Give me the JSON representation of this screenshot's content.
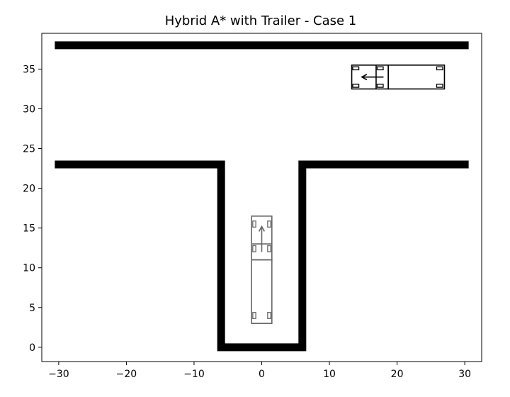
{
  "chart_data": {
    "type": "line",
    "title": "Hybrid A* with Trailer - Case 1",
    "xlabel": "",
    "ylabel": "",
    "xlim": [
      -32.5,
      32.5
    ],
    "ylim": [
      -1.8,
      39.5
    ],
    "grid": false,
    "equal_aspect": true,
    "x_ticks": [
      -30,
      -20,
      -10,
      0,
      10,
      20,
      30
    ],
    "x_tick_labels": [
      "−30",
      "−20",
      "−10",
      "0",
      "10",
      "20",
      "30"
    ],
    "y_ticks": [
      0,
      5,
      10,
      15,
      20,
      25,
      30,
      35
    ],
    "y_tick_labels": [
      "0",
      "5",
      "10",
      "15",
      "20",
      "25",
      "30",
      "35"
    ],
    "obstacles": [
      {
        "points": [
          [
            -30,
            38
          ],
          [
            30,
            38
          ]
        ]
      },
      {
        "points": [
          [
            -30,
            23
          ],
          [
            -6,
            23
          ],
          [
            -6,
            0
          ],
          [
            6,
            0
          ],
          [
            6,
            23
          ],
          [
            30,
            23
          ]
        ]
      }
    ],
    "vehicles": [
      {
        "role": "start",
        "color": "#000000",
        "heading_deg": 180,
        "cab": {
          "x_min": 13.3,
          "x_max": 18.7,
          "y_min": 32.5,
          "y_max": 35.5
        },
        "trailer": {
          "x_min": 18.7,
          "x_max": 27.0,
          "y_min": 32.5,
          "y_max": 35.5
        },
        "hitch_x": 16.9,
        "arrow": {
          "from": [
            18.0,
            34.0
          ],
          "to": [
            14.8,
            34.0
          ]
        }
      },
      {
        "role": "goal",
        "color": "#666666",
        "heading_deg": 90,
        "cab": {
          "x_min": -1.5,
          "x_max": 1.5,
          "y_min": 11.0,
          "y_max": 16.5
        },
        "trailer": {
          "x_min": -1.5,
          "x_max": 1.5,
          "y_min": 3.0,
          "y_max": 11.0
        },
        "hitch_y": 13.0,
        "arrow": {
          "from": [
            0.0,
            12.0
          ],
          "to": [
            0.0,
            15.2
          ]
        }
      }
    ],
    "colors": {
      "obstacle": "#000000",
      "start_vehicle": "#000000",
      "goal_vehicle": "#666666",
      "axes": "#000000"
    }
  }
}
